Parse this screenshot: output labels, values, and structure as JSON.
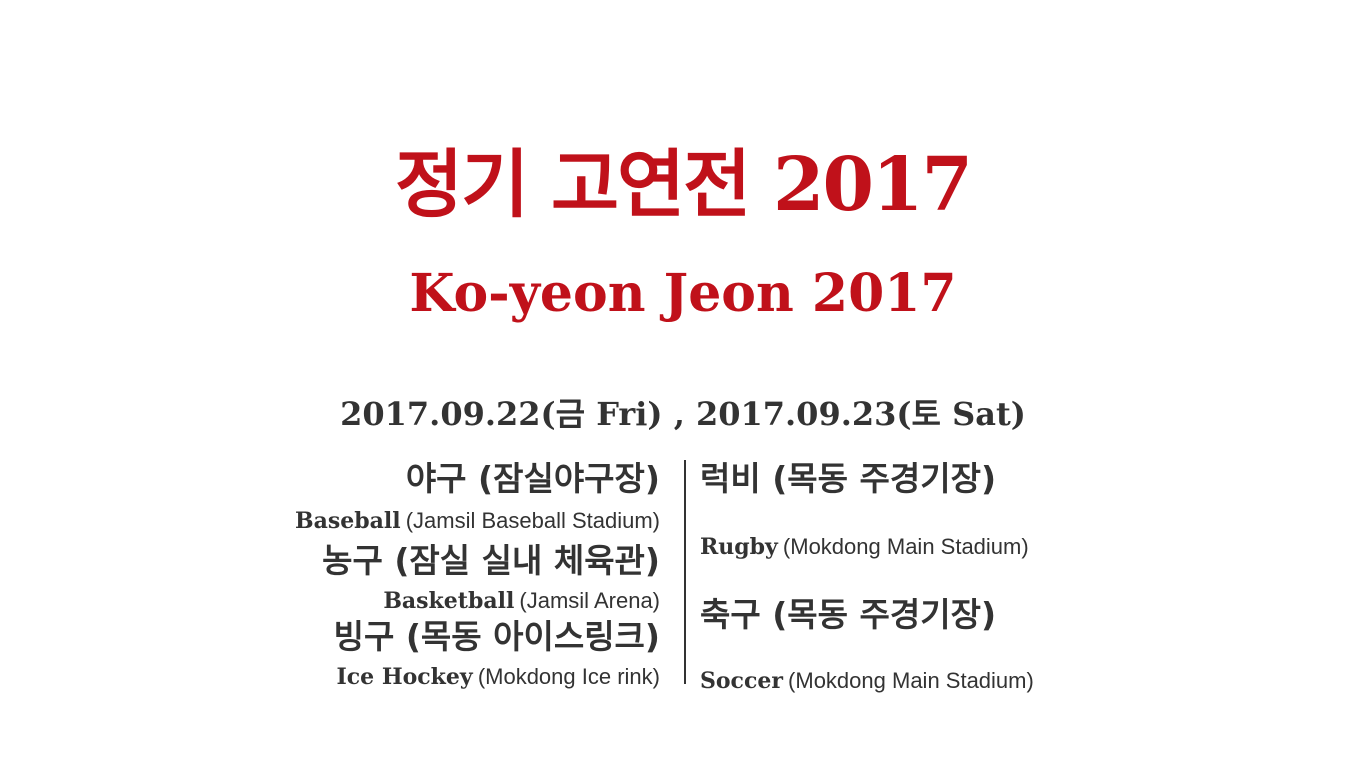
{
  "title_ko": "정기 고연전 2017",
  "title_en": "Ko-yeon Jeon 2017",
  "dates": "2017.09.22(금 Fri) , 2017.09.23(토 Sat)",
  "left_games": [
    {
      "ko": "야구 (잠실야구장)",
      "en_name": "Baseball",
      "en_venue": "(Jamsil Baseball Stadium)"
    },
    {
      "ko": "농구 (잠실 실내 체육관)",
      "en_name": "Basketball",
      "en_venue": "(Jamsil Arena)"
    },
    {
      "ko": "빙구 (목동 아이스링크)",
      "en_name": "Ice Hockey",
      "en_venue": "(Mokdong Ice rink)"
    }
  ],
  "right_games": [
    {
      "ko": "럭비 (목동 주경기장)",
      "en_name": "Rugby",
      "en_venue": "(Mokdong Main Stadium)"
    },
    {
      "ko": "축구 (목동 주경기장)",
      "en_name": "Soccer",
      "en_venue": "(Mokdong Main Stadium)"
    }
  ],
  "colors": {
    "title": "#c0111a",
    "text": "#333333",
    "background": "#ffffff"
  }
}
